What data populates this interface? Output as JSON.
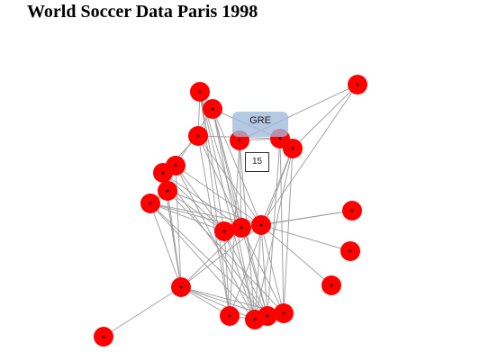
{
  "page": {
    "title": "World Soccer Data Paris 1998"
  },
  "colors": {
    "node_fill": "#ff0000",
    "node_center": "#111111",
    "edge": "#9a9a9a",
    "tooltip_bg": "#a0badc"
  },
  "tooltip": {
    "label": "GRE",
    "value": "15"
  }
}
